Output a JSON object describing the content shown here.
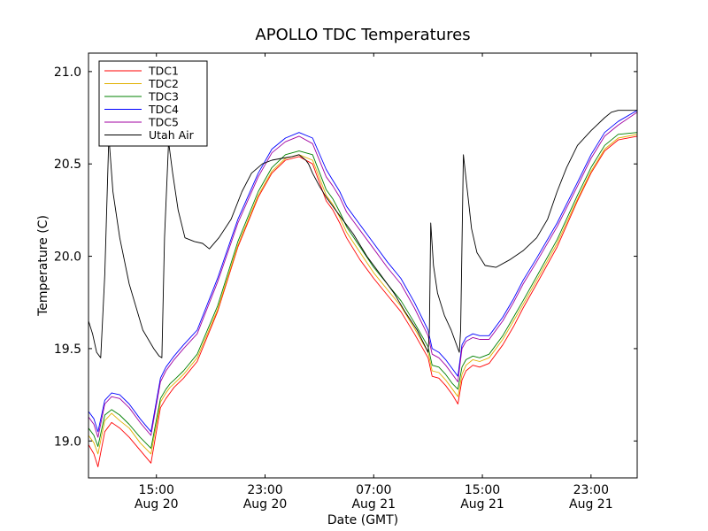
{
  "chart_data": {
    "type": "line",
    "title": "APOLLO TDC Temperatures",
    "xlabel": "Date (GMT)",
    "ylabel": "Temperature (C)",
    "xlim": [
      10.0,
      50.4
    ],
    "ylim": [
      18.8,
      21.1
    ],
    "x_unit": "hours since Aug 20 00:00 GMT",
    "x_ticks": [
      {
        "value": 15,
        "line1": "15:00",
        "line2": "Aug 20"
      },
      {
        "value": 23,
        "line1": "23:00",
        "line2": "Aug 20"
      },
      {
        "value": 31,
        "line1": "07:00",
        "line2": "Aug 21"
      },
      {
        "value": 39,
        "line1": "15:00",
        "line2": "Aug 21"
      },
      {
        "value": 47,
        "line1": "23:00",
        "line2": "Aug 21"
      }
    ],
    "y_ticks": [
      {
        "value": 19.0,
        "label": "19.0"
      },
      {
        "value": 19.5,
        "label": "19.5"
      },
      {
        "value": 20.0,
        "label": "20.0"
      },
      {
        "value": 20.5,
        "label": "20.5"
      },
      {
        "value": 21.0,
        "label": "21.0"
      }
    ],
    "grid": false,
    "legend_position": "top-left",
    "series": [
      {
        "name": "TDC1",
        "color": "#ff0000",
        "x": [
          10.0,
          10.4,
          10.7,
          11.2,
          11.7,
          12.3,
          13.0,
          13.8,
          14.6,
          15.3,
          15.7,
          16.0,
          16.3,
          17.0,
          18.0,
          19.5,
          21.0,
          22.5,
          23.5,
          24.5,
          25.5,
          26.5,
          27.5,
          28.0,
          28.5,
          29.0,
          30.0,
          31.0,
          32.0,
          33.0,
          34.0,
          35.0,
          35.3,
          35.8,
          36.3,
          36.8,
          37.2,
          37.5,
          37.8,
          38.3,
          38.8,
          39.5,
          40.5,
          41.3,
          42.0,
          43.0,
          44.5,
          46.0,
          47.0,
          48.0,
          49.0,
          50.4
        ],
        "values": [
          18.98,
          18.93,
          18.86,
          19.05,
          19.1,
          19.07,
          19.02,
          18.95,
          18.88,
          19.18,
          19.23,
          19.26,
          19.29,
          19.34,
          19.43,
          19.7,
          20.05,
          20.32,
          20.45,
          20.52,
          20.54,
          20.5,
          20.3,
          20.25,
          20.18,
          20.1,
          19.98,
          19.88,
          19.79,
          19.7,
          19.58,
          19.45,
          19.35,
          19.34,
          19.3,
          19.25,
          19.2,
          19.33,
          19.38,
          19.41,
          19.4,
          19.42,
          19.52,
          19.62,
          19.72,
          19.85,
          20.05,
          20.3,
          20.45,
          20.57,
          20.63,
          20.65
        ]
      },
      {
        "name": "TDC2",
        "color": "#e0b000",
        "x": [
          10.0,
          10.4,
          10.7,
          11.2,
          11.7,
          12.3,
          13.0,
          13.8,
          14.6,
          15.3,
          15.7,
          16.0,
          16.3,
          17.0,
          18.0,
          19.5,
          21.0,
          22.5,
          23.5,
          24.5,
          25.5,
          26.5,
          27.5,
          28.0,
          28.5,
          29.0,
          30.0,
          31.0,
          32.0,
          33.0,
          34.0,
          35.0,
          35.3,
          35.8,
          36.3,
          36.8,
          37.2,
          37.5,
          37.8,
          38.3,
          38.8,
          39.5,
          40.5,
          41.3,
          42.0,
          43.0,
          44.5,
          46.0,
          47.0,
          48.0,
          49.0,
          50.4
        ],
        "values": [
          19.03,
          18.99,
          18.93,
          19.11,
          19.15,
          19.11,
          19.07,
          18.99,
          18.93,
          19.21,
          19.26,
          19.29,
          19.31,
          19.36,
          19.45,
          19.71,
          20.06,
          20.33,
          20.46,
          20.53,
          20.55,
          20.52,
          20.33,
          20.28,
          20.21,
          20.13,
          20.02,
          19.91,
          19.82,
          19.73,
          19.61,
          19.48,
          19.38,
          19.37,
          19.33,
          19.28,
          19.24,
          19.36,
          19.41,
          19.44,
          19.43,
          19.45,
          19.55,
          19.65,
          19.74,
          19.87,
          20.07,
          20.31,
          20.46,
          20.58,
          20.64,
          20.66
        ]
      },
      {
        "name": "TDC3",
        "color": "#008000",
        "x": [
          10.0,
          10.4,
          10.7,
          11.2,
          11.7,
          12.3,
          13.0,
          13.8,
          14.6,
          15.3,
          15.7,
          16.0,
          16.3,
          17.0,
          18.0,
          19.5,
          21.0,
          22.5,
          23.5,
          24.5,
          25.5,
          26.5,
          27.5,
          28.0,
          28.5,
          29.0,
          30.0,
          31.0,
          32.0,
          33.0,
          34.0,
          35.0,
          35.3,
          35.8,
          36.3,
          36.8,
          37.2,
          37.5,
          37.8,
          38.3,
          38.8,
          39.5,
          40.5,
          41.3,
          42.0,
          43.0,
          44.5,
          46.0,
          47.0,
          48.0,
          49.0,
          50.4
        ],
        "values": [
          19.07,
          19.03,
          18.97,
          19.14,
          19.17,
          19.14,
          19.09,
          19.02,
          18.96,
          19.23,
          19.28,
          19.31,
          19.33,
          19.38,
          19.47,
          19.73,
          20.08,
          20.35,
          20.48,
          20.55,
          20.57,
          20.55,
          20.36,
          20.31,
          20.24,
          20.16,
          20.05,
          19.94,
          19.85,
          19.76,
          19.64,
          19.51,
          19.41,
          19.4,
          19.36,
          19.31,
          19.28,
          19.4,
          19.44,
          19.46,
          19.45,
          19.47,
          19.57,
          19.67,
          19.76,
          19.89,
          20.09,
          20.33,
          20.48,
          20.6,
          20.66,
          20.67
        ]
      },
      {
        "name": "TDC4",
        "color": "#0000ff",
        "x": [
          10.0,
          10.4,
          10.7,
          11.2,
          11.7,
          12.3,
          13.0,
          13.8,
          14.6,
          15.3,
          15.7,
          16.0,
          16.3,
          17.0,
          18.0,
          19.5,
          21.0,
          22.5,
          23.5,
          24.5,
          25.5,
          26.5,
          27.5,
          28.0,
          28.5,
          29.0,
          30.0,
          31.0,
          32.0,
          33.0,
          34.0,
          35.0,
          35.3,
          35.8,
          36.3,
          36.8,
          37.2,
          37.5,
          37.8,
          38.3,
          38.8,
          39.5,
          40.5,
          41.3,
          42.0,
          43.0,
          44.5,
          46.0,
          47.0,
          48.0,
          49.0,
          50.4
        ],
        "values": [
          19.16,
          19.12,
          19.05,
          19.22,
          19.26,
          19.25,
          19.2,
          19.12,
          19.05,
          19.34,
          19.4,
          19.43,
          19.46,
          19.52,
          19.6,
          19.88,
          20.2,
          20.45,
          20.58,
          20.64,
          20.67,
          20.64,
          20.47,
          20.41,
          20.35,
          20.27,
          20.17,
          20.07,
          19.97,
          19.88,
          19.75,
          19.6,
          19.5,
          19.48,
          19.44,
          19.39,
          19.35,
          19.52,
          19.56,
          19.58,
          19.57,
          19.57,
          19.67,
          19.77,
          19.87,
          19.99,
          20.18,
          20.4,
          20.55,
          20.67,
          20.73,
          20.79
        ]
      },
      {
        "name": "TDC5",
        "color": "#a000a0",
        "x": [
          10.0,
          10.4,
          10.7,
          11.2,
          11.7,
          12.3,
          13.0,
          13.8,
          14.6,
          15.3,
          15.7,
          16.0,
          16.3,
          17.0,
          18.0,
          19.5,
          21.0,
          22.5,
          23.5,
          24.5,
          25.5,
          26.5,
          27.5,
          28.0,
          28.5,
          29.0,
          30.0,
          31.0,
          32.0,
          33.0,
          34.0,
          35.0,
          35.3,
          35.8,
          36.3,
          36.8,
          37.2,
          37.5,
          37.8,
          38.3,
          38.8,
          39.5,
          40.5,
          41.3,
          42.0,
          43.0,
          44.5,
          46.0,
          47.0,
          48.0,
          49.0,
          50.4
        ],
        "values": [
          19.13,
          19.09,
          19.02,
          19.2,
          19.24,
          19.23,
          19.18,
          19.1,
          19.03,
          19.32,
          19.38,
          19.41,
          19.44,
          19.5,
          19.58,
          19.86,
          20.18,
          20.43,
          20.56,
          20.62,
          20.65,
          20.61,
          20.43,
          20.38,
          20.32,
          20.24,
          20.14,
          20.04,
          19.94,
          19.85,
          19.72,
          19.57,
          19.47,
          19.45,
          19.41,
          19.36,
          19.32,
          19.5,
          19.54,
          19.56,
          19.55,
          19.55,
          19.65,
          19.75,
          19.85,
          19.97,
          20.16,
          20.38,
          20.53,
          20.65,
          20.71,
          20.78
        ]
      },
      {
        "name": "Utah Air",
        "color": "#000000",
        "x": [
          10.0,
          10.3,
          10.6,
          10.9,
          11.2,
          11.5,
          11.8,
          12.3,
          13.0,
          14.0,
          14.8,
          15.2,
          15.4,
          15.6,
          15.9,
          16.2,
          16.6,
          17.1,
          17.8,
          18.4,
          18.9,
          19.6,
          20.5,
          21.3,
          22.0,
          22.8,
          23.5,
          24.2,
          25.0,
          25.5,
          26.0,
          26.2,
          26.5,
          27.0,
          27.5,
          28.5,
          29.5,
          30.5,
          31.5,
          32.5,
          33.3,
          34.2,
          35.0,
          35.1,
          35.2,
          35.4,
          35.7,
          36.2,
          36.7,
          37.2,
          37.3,
          37.4,
          37.6,
          37.9,
          38.2,
          38.6,
          39.2,
          40.0,
          41.0,
          42.0,
          43.0,
          43.8,
          44.5,
          45.2,
          46.0,
          47.0,
          48.0,
          48.5,
          49.0,
          50.4
        ],
        "values": [
          19.65,
          19.58,
          19.48,
          19.45,
          19.9,
          20.65,
          20.35,
          20.1,
          19.85,
          19.6,
          19.5,
          19.46,
          19.45,
          20.1,
          20.62,
          20.45,
          20.25,
          20.1,
          20.08,
          20.07,
          20.04,
          20.1,
          20.2,
          20.35,
          20.45,
          20.5,
          20.52,
          20.53,
          20.54,
          20.55,
          20.52,
          20.5,
          20.45,
          20.38,
          20.32,
          20.22,
          20.12,
          20.0,
          19.9,
          19.8,
          19.7,
          19.6,
          19.48,
          19.6,
          20.18,
          19.95,
          19.8,
          19.68,
          19.6,
          19.5,
          19.48,
          19.6,
          20.55,
          20.35,
          20.15,
          20.02,
          19.95,
          19.94,
          19.98,
          20.03,
          20.1,
          20.2,
          20.35,
          20.48,
          20.6,
          20.68,
          20.75,
          20.78,
          20.79,
          20.79
        ]
      }
    ]
  }
}
